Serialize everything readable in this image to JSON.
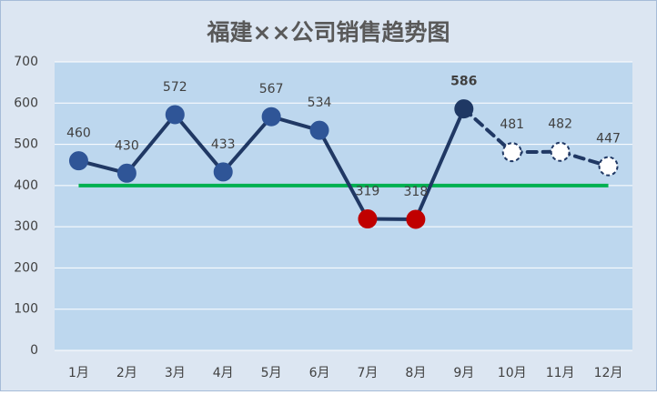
{
  "chart_data": {
    "type": "line",
    "title": "福建××公司销售趋势图",
    "categories": [
      "1月",
      "2月",
      "3月",
      "4月",
      "5月",
      "6月",
      "7月",
      "8月",
      "9月",
      "10月",
      "11月",
      "12月"
    ],
    "values": [
      460,
      430,
      572,
      433,
      567,
      534,
      319,
      318,
      586,
      481,
      482,
      447
    ],
    "forecast": [
      false,
      false,
      false,
      false,
      false,
      false,
      false,
      false,
      false,
      true,
      true,
      true
    ],
    "color": "#203864",
    "marker_color": "#2f5597",
    "low_color": "#c00000",
    "max_color": "#1f3864",
    "forecast_fill": "#ffffff",
    "reference_line": {
      "value": 400,
      "color": "#00b050"
    },
    "ylim": [
      0,
      700
    ],
    "yticks": [
      0,
      100,
      200,
      300,
      400,
      500,
      600,
      700
    ],
    "grid": true
  }
}
